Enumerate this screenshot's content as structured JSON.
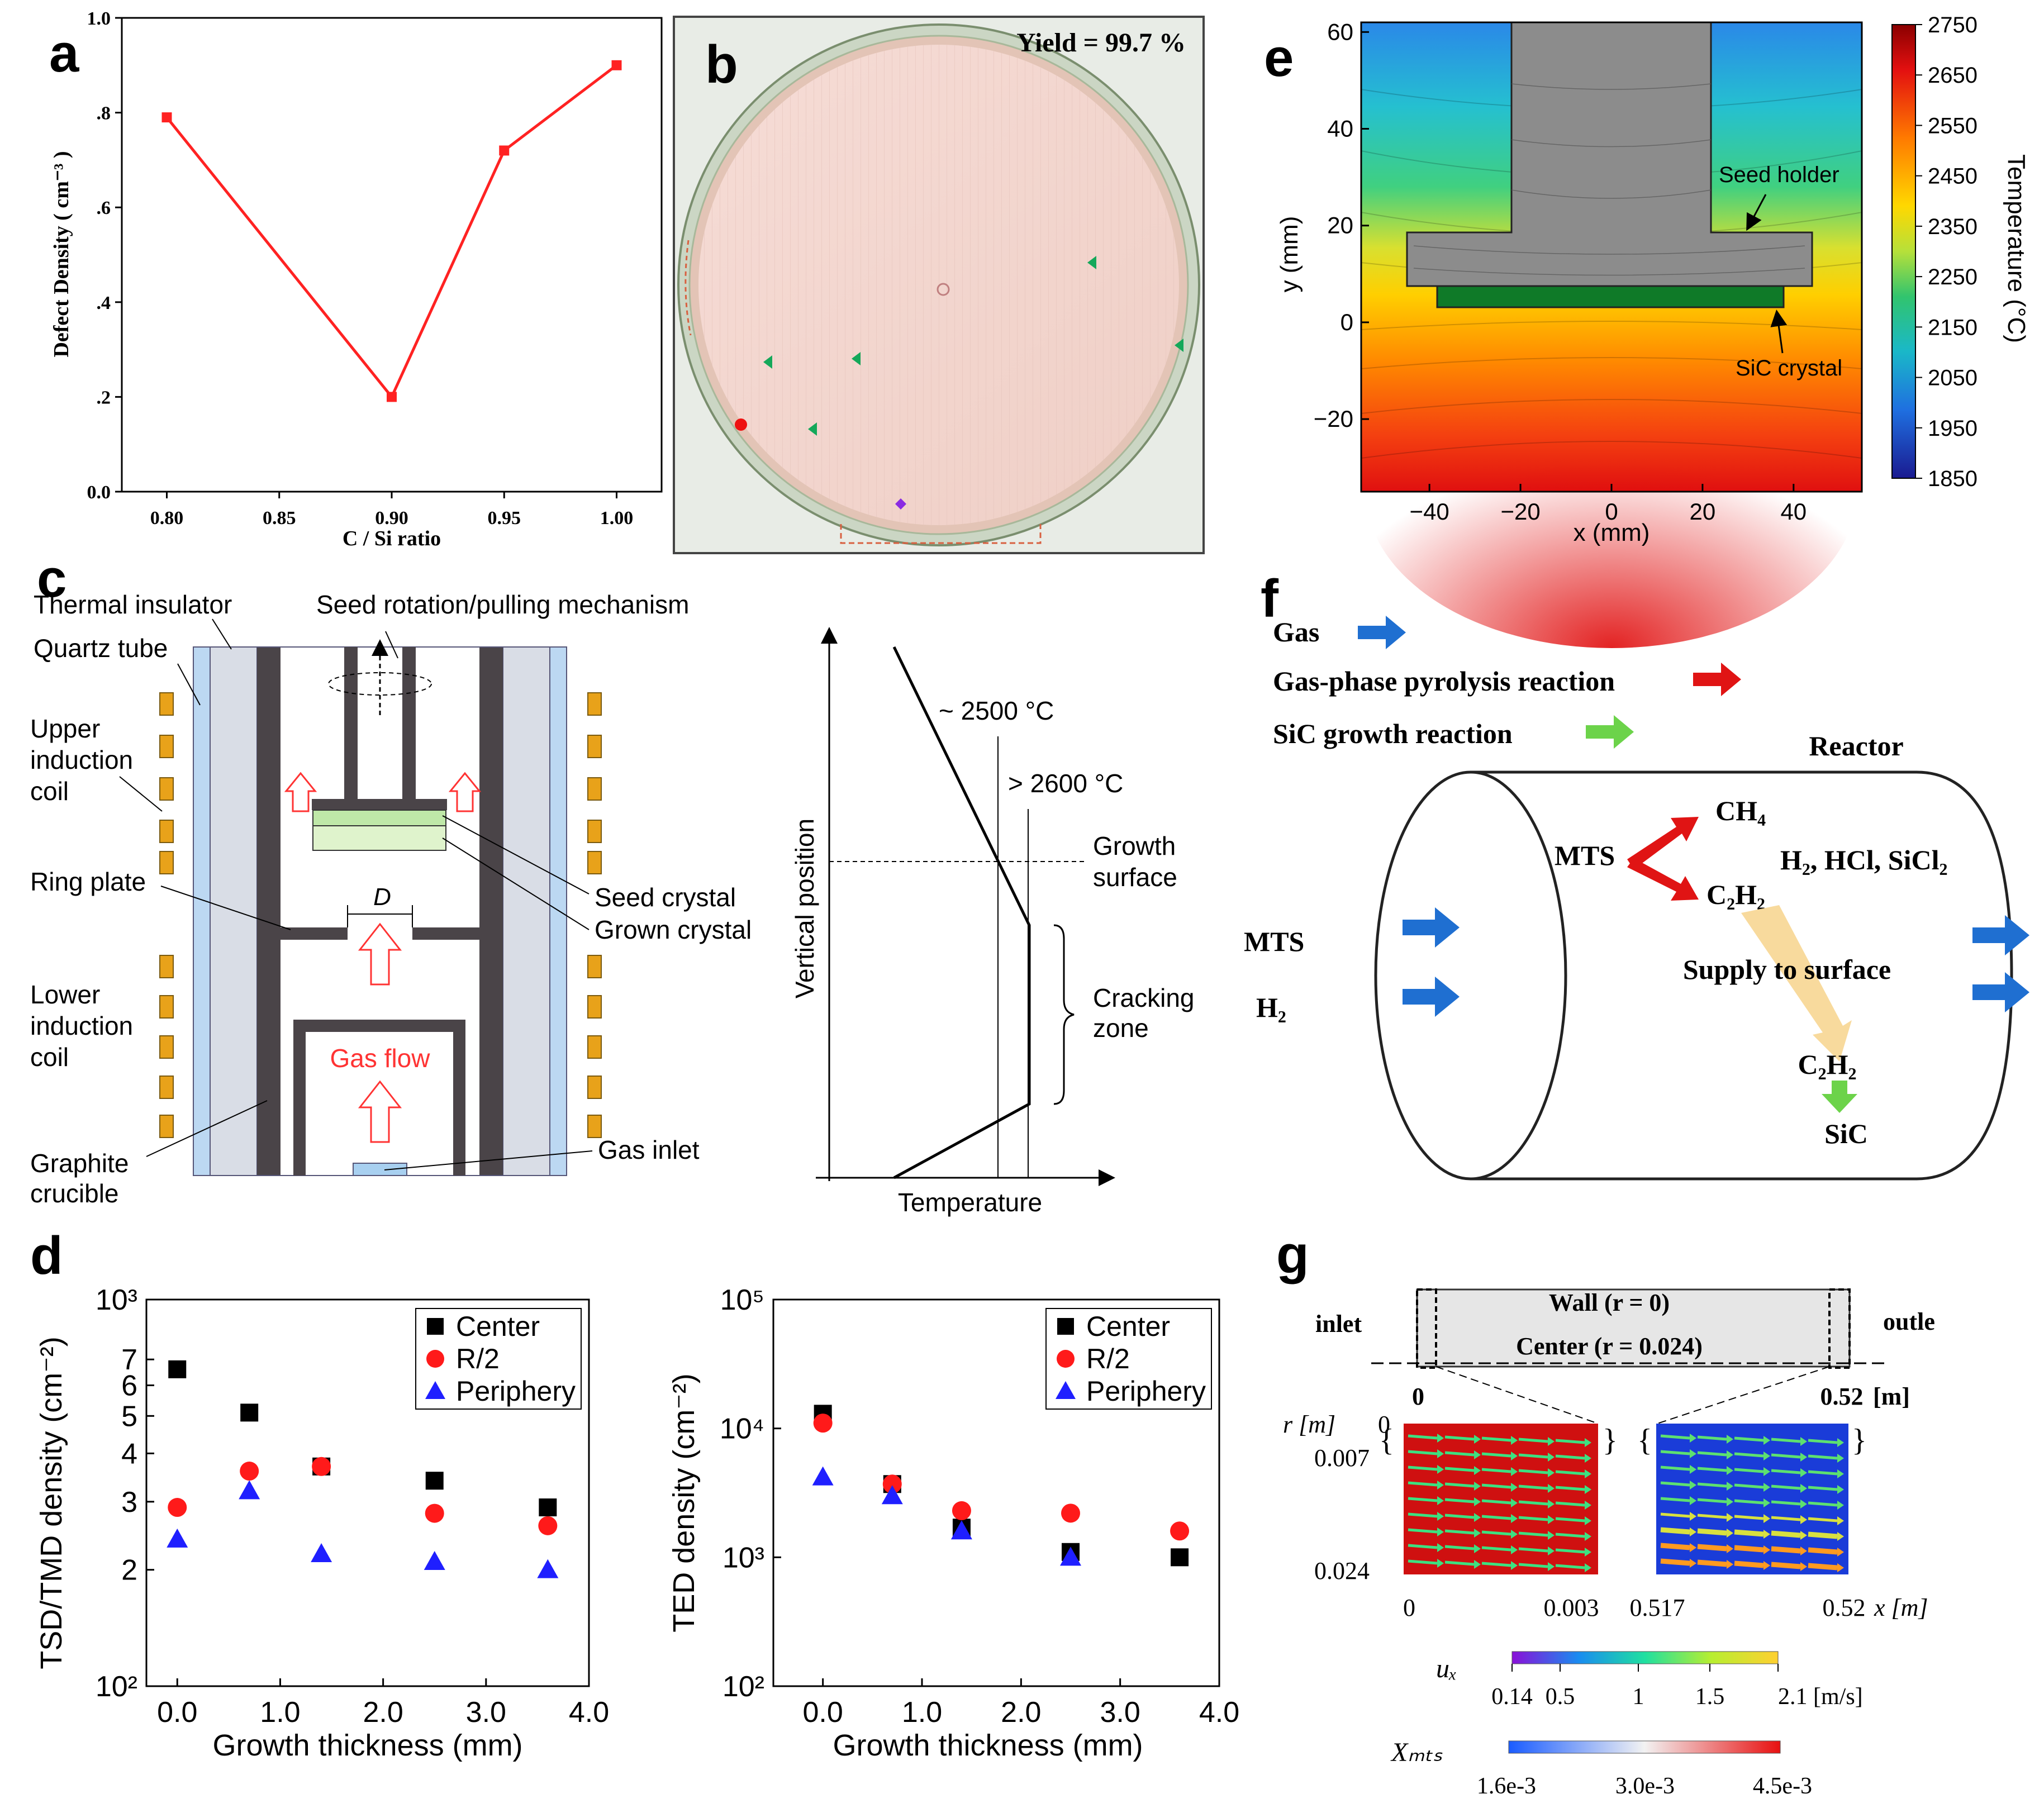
{
  "panel_labels": {
    "a": "a",
    "b": "b",
    "c": "c",
    "d": "d",
    "e": "e",
    "f": "f",
    "g": "g"
  },
  "chart_data": [
    {
      "id": "panel-a",
      "type": "line",
      "xlabel": "C / Si ratio",
      "ylabel": "Defect Density ( cm⁻³ )",
      "xlim": [
        0.78,
        1.02
      ],
      "ylim": [
        0.0,
        1.0
      ],
      "x_ticks": [
        0.8,
        0.85,
        0.9,
        0.95,
        1.0
      ],
      "x_tick_labels": [
        "0.80",
        "0.85",
        "0.90",
        "0.95",
        "1.00"
      ],
      "y_ticks": [
        0.0,
        0.2,
        0.4,
        0.6,
        0.8,
        1.0
      ],
      "y_tick_labels": [
        "0.0",
        ".2",
        ".4",
        ".6",
        ".8",
        "1.0"
      ],
      "x": [
        0.8,
        0.9,
        0.95,
        1.0
      ],
      "y": [
        0.79,
        0.2,
        0.72,
        0.9
      ],
      "color": "#ff2222"
    },
    {
      "id": "panel-d-left",
      "type": "scatter",
      "xlabel": "Growth thickness (mm)",
      "ylabel": "TSD/TMD density (cm⁻²)",
      "xlim": [
        -0.3,
        4.0
      ],
      "ylim": [
        100,
        1000
      ],
      "log_y": true,
      "x_tick_labels": [
        "0.0",
        "1.0",
        "2.0",
        "3.0",
        "4.0"
      ],
      "y_tick_labels": [
        "10²",
        "2",
        "3",
        "4",
        "5",
        "6",
        "7",
        "10³"
      ],
      "legend_position": "top-right",
      "series": [
        {
          "name": "Center",
          "marker": "square",
          "color": "#000000",
          "x": [
            0,
            0.7,
            1.4,
            2.5,
            3.6
          ],
          "y": [
            660,
            510,
            370,
            340,
            290
          ]
        },
        {
          "name": "R/2",
          "marker": "circle",
          "color": "#ff1a1a",
          "x": [
            0,
            0.7,
            1.4,
            2.5,
            3.6
          ],
          "y": [
            290,
            360,
            370,
            280,
            260
          ]
        },
        {
          "name": "Periphery",
          "marker": "triangle",
          "color": "#1f1fff",
          "x": [
            0,
            0.7,
            1.4,
            2.5,
            3.6
          ],
          "y": [
            240,
            320,
            220,
            210,
            200
          ]
        }
      ]
    },
    {
      "id": "panel-d-right",
      "type": "scatter",
      "xlabel": "Growth thickness (mm)",
      "ylabel": "TED density (cm⁻²)",
      "xlim": [
        -0.5,
        4.0
      ],
      "ylim": [
        100,
        100000
      ],
      "log_y": true,
      "x_tick_labels": [
        "0.0",
        "1.0",
        "2.0",
        "3.0",
        "4.0"
      ],
      "y_tick_labels": [
        "10²",
        "10³",
        "10⁴",
        "10⁵"
      ],
      "legend_position": "top-right",
      "series": [
        {
          "name": "Center",
          "marker": "square",
          "color": "#000000",
          "x": [
            0,
            0.7,
            1.4,
            2.5,
            3.6
          ],
          "y": [
            13000,
            3700,
            1700,
            1100,
            1000
          ]
        },
        {
          "name": "R/2",
          "marker": "circle",
          "color": "#ff1a1a",
          "x": [
            0,
            0.7,
            1.4,
            2.5,
            3.6
          ],
          "y": [
            11000,
            3700,
            2300,
            2200,
            1600
          ]
        },
        {
          "name": "Periphery",
          "marker": "triangle",
          "color": "#1f1fff",
          "x": [
            0,
            0.7,
            1.4,
            2.5,
            3.6
          ],
          "y": [
            4200,
            3000,
            1600,
            1000,
            null
          ]
        }
      ]
    },
    {
      "id": "panel-e",
      "type": "heatmap",
      "xlabel": "x (mm)",
      "ylabel": "y (mm)",
      "xlim": [
        -55,
        55
      ],
      "ylim": [
        -35,
        62
      ],
      "x_tick_labels": [
        "−40",
        "−20",
        "0",
        "20",
        "40"
      ],
      "y_tick_labels": [
        "60",
        "40",
        "20",
        "0",
        "−20"
      ],
      "colorbar_label": "Temperature (°C)",
      "colorbar_ticks": [
        "2750",
        "2650",
        "2550",
        "2450",
        "2350",
        "2250",
        "2150",
        "2050",
        "1950",
        "1850"
      ],
      "annotations": [
        "Seed holder",
        "SiC crystal"
      ]
    }
  ],
  "panel_b": {
    "yield_text": "Yield = 99.7 %"
  },
  "panel_c": {
    "labels": {
      "thermal_insulator": "Thermal insulator",
      "seed_mechanism": "Seed rotation/pulling mechanism",
      "quartz_tube": "Quartz tube",
      "upper_coil": [
        "Upper",
        "induction",
        "coil"
      ],
      "ring_plate": "Ring plate",
      "d_label": "D",
      "seed_crystal": "Seed crystal",
      "grown_crystal": "Grown crystal",
      "lower_coil": [
        "Lower",
        "induction",
        "coil"
      ],
      "gas_flow": "Gas flow",
      "graphite_crucible": [
        "Graphite",
        "crucible"
      ],
      "gas_inlet": "Gas inlet"
    },
    "temp_profile": {
      "t1": "~ 2500 °C",
      "t2": "> 2600 °C",
      "growth_surface": [
        "Growth",
        "surface"
      ],
      "cracking_zone": [
        "Cracking",
        "zone"
      ],
      "ylabel": "Vertical position",
      "xlabel": "Temperature"
    },
    "colors": {
      "coil": "#e8a21a",
      "gas": "#ff3333",
      "wall": "#4a4448",
      "insulator": "#d9dde6",
      "quartz": "#bcd8f2"
    }
  },
  "panel_f": {
    "legend": [
      {
        "label": "Gas",
        "color": "#1f6fd1"
      },
      {
        "label": "Gas-phase pyrolysis reaction",
        "color": "#e01414"
      },
      {
        "label": "SiC growth reaction",
        "color": "#6cd34a"
      }
    ],
    "reactor": "Reactor",
    "mts": "MTS",
    "ch4": "CH₄",
    "products": "H₂, HCl, SiCl₂",
    "c2h2": "C₂H₂",
    "inlet_mts": "MTS",
    "inlet_h2": "H₂",
    "supply": "Supply to surface",
    "c2h2_surface": "C₂H₂",
    "sic": "SiC"
  },
  "panel_g": {
    "inlet": "inlet",
    "outlet": "outle",
    "wall": "Wall (r = 0)",
    "center": "Center (r = 0.024)",
    "x0": "0",
    "x_end": "0.52",
    "x_unit": "[m]",
    "r_label": "r [m]",
    "r_ticks": [
      "0",
      "0.007",
      "0.024"
    ],
    "x_ticks_left": [
      "0",
      "0.003"
    ],
    "x_ticks_right": [
      "0.517",
      "0.52"
    ],
    "x_axis_label": "x [m]",
    "ux_label": "uₓ",
    "ux_ticks": [
      "0.14",
      "0.5",
      "1",
      "1.5",
      "2.1 [m/s]"
    ],
    "xmts_label": "Xₘₜₛ",
    "xmts_ticks": [
      "1.6e-3",
      "3.0e-3",
      "4.5e-3"
    ]
  }
}
